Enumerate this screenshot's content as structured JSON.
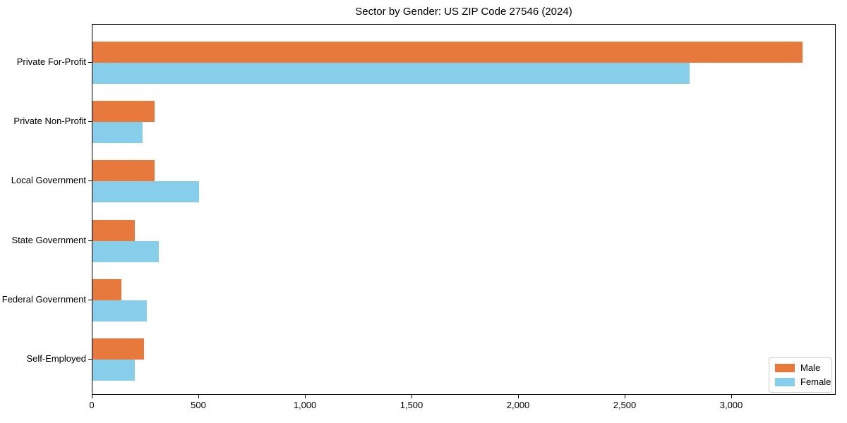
{
  "chart_data": {
    "type": "bar",
    "orientation": "horizontal",
    "title": "Sector by Gender: US ZIP Code 27546 (2024)",
    "categories": [
      "Private For-Profit",
      "Private Non-Profit",
      "Local Government",
      "State Government",
      "Federal Government",
      "Self-Employed"
    ],
    "series": [
      {
        "name": "Male",
        "color": "#e8793d",
        "values": [
          3330,
          290,
          290,
          200,
          135,
          240
        ]
      },
      {
        "name": "Female",
        "color": "#87ceeb",
        "values": [
          2800,
          235,
          500,
          310,
          255,
          200
        ]
      }
    ],
    "xlabel": "",
    "ylabel": "",
    "xlim": [
      0,
      3490
    ],
    "xticks": {
      "values": [
        0,
        500,
        1000,
        1500,
        2000,
        2500,
        3000
      ],
      "labels": [
        "0",
        "500",
        "1,000",
        "1,500",
        "2,000",
        "2,500",
        "3,000"
      ]
    },
    "grid": false,
    "legend": {
      "position": "lower-right"
    }
  }
}
